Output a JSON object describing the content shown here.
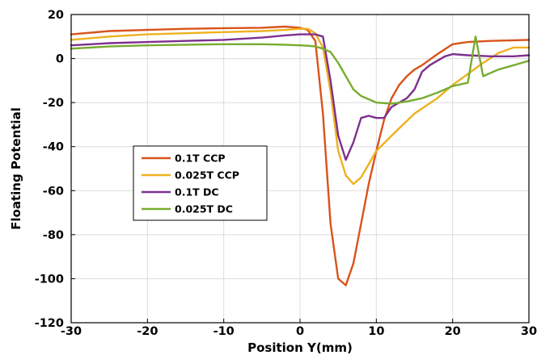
{
  "chart_data": {
    "type": "line",
    "title": "",
    "xlabel": "Position Y(mm)",
    "ylabel": "Floating Potential",
    "xlim": [
      -30,
      30
    ],
    "ylim": [
      -120,
      20
    ],
    "xticks": [
      "-30",
      "-20",
      "-10",
      "0",
      "10",
      "20",
      "30"
    ],
    "yticks": [
      "20",
      "0",
      "-20",
      "-40",
      "-60",
      "-80",
      "-100",
      "-120"
    ],
    "grid": true,
    "legend_position": "center-left",
    "series": [
      {
        "name": "0.1T CCP",
        "color": "#d95319",
        "x": [
          -30,
          -25,
          -20,
          -15,
          -10,
          -5,
          -2,
          0,
          1,
          2,
          3,
          4,
          5,
          6,
          7,
          8,
          9,
          10,
          11,
          12,
          13,
          14,
          15,
          16,
          18,
          20,
          22,
          25,
          28,
          30
        ],
        "y": [
          11,
          12.5,
          13,
          13.5,
          13.8,
          14,
          14.5,
          14,
          13,
          8,
          -25,
          -75,
          -100,
          -103,
          -93,
          -75,
          -57,
          -42,
          -28,
          -18,
          -12,
          -8,
          -5,
          -3,
          2,
          6.5,
          7.5,
          8,
          8.3,
          8.5
        ]
      },
      {
        "name": "0.025T CCP",
        "color": "#edb120",
        "x": [
          -30,
          -25,
          -20,
          -15,
          -10,
          -5,
          -2,
          0,
          1,
          2,
          3,
          4,
          5,
          6,
          7,
          8,
          9,
          10,
          12,
          15,
          18,
          20,
          22,
          24,
          26,
          28,
          30
        ],
        "y": [
          8.5,
          10,
          11,
          11.5,
          12,
          12.5,
          13,
          13.5,
          13.5,
          11.5,
          5,
          -15,
          -42,
          -53,
          -57,
          -54,
          -48,
          -42,
          -35,
          -25,
          -18,
          -12,
          -7,
          -2,
          2.5,
          5,
          5
        ]
      },
      {
        "name": "0.1T DC",
        "color": "#7e2f8e",
        "x": [
          -30,
          -25,
          -20,
          -15,
          -10,
          -5,
          -2,
          0,
          1,
          2,
          3,
          4,
          5,
          6,
          7,
          8,
          9,
          10,
          11,
          12,
          13,
          14,
          15,
          16,
          17,
          18,
          19,
          20,
          22,
          25,
          28,
          30
        ],
        "y": [
          6,
          7,
          7.5,
          8,
          8.5,
          9.5,
          10.5,
          11,
          11,
          11,
          10,
          -10,
          -35,
          -46,
          -38,
          -27,
          -26,
          -27,
          -27,
          -22,
          -20,
          -18,
          -14,
          -6,
          -3,
          -1,
          1,
          2,
          1.5,
          1,
          1,
          1.5
        ]
      },
      {
        "name": "0.025T DC",
        "color": "#77ac30",
        "x": [
          -30,
          -25,
          -20,
          -15,
          -10,
          -5,
          -2,
          0,
          1,
          2,
          3,
          4,
          5,
          6,
          7,
          8,
          10,
          12,
          14,
          16,
          18,
          20,
          22,
          23,
          24,
          26,
          28,
          30
        ],
        "y": [
          4.5,
          5.5,
          6,
          6.3,
          6.5,
          6.5,
          6.3,
          6,
          5.8,
          5.5,
          4.5,
          3,
          -2,
          -8,
          -14,
          -17,
          -20,
          -20.5,
          -19.5,
          -18,
          -15.5,
          -12.5,
          -11,
          10,
          -8,
          -5,
          -3,
          -1
        ]
      }
    ]
  }
}
